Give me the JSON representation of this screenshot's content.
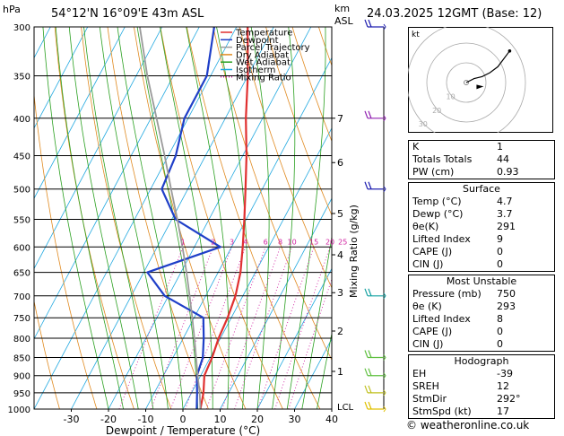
{
  "header": {
    "hpa_label": "hPa",
    "location": "54°12'N 16°09'E 43m ASL",
    "km_label": "km",
    "asl_label": "ASL",
    "datetime": "24.03.2025 12GMT (Base: 12)"
  },
  "legend": [
    {
      "label": "Temperature",
      "color": "#e03030",
      "dash": ""
    },
    {
      "label": "Dewpoint",
      "color": "#1f3fc8",
      "dash": ""
    },
    {
      "label": "Parcel Trajectory",
      "color": "#9a9a9a",
      "dash": ""
    },
    {
      "label": "Dry Adiabat",
      "color": "#e08a20",
      "dash": ""
    },
    {
      "label": "Wet Adiabat",
      "color": "#2aa020",
      "dash": ""
    },
    {
      "label": "Isotherm",
      "color": "#20a8e0",
      "dash": ""
    },
    {
      "label": "Mixing Ratio",
      "color": "#d020a0",
      "dash": "1,2"
    }
  ],
  "chart_data": {
    "type": "line",
    "xlabel": "Dewpoint / Temperature (°C)",
    "x_ticks": [
      -30,
      -20,
      -10,
      0,
      10,
      20,
      30,
      40
    ],
    "pressure_levels": [
      300,
      350,
      400,
      450,
      500,
      550,
      600,
      650,
      700,
      750,
      800,
      850,
      900,
      950,
      1000
    ],
    "km_ticks": [
      {
        "label": "7",
        "p": 400
      },
      {
        "label": "6",
        "p": 460
      },
      {
        "label": "5",
        "p": 540
      },
      {
        "label": "4",
        "p": 615
      },
      {
        "label": "3",
        "p": 693
      },
      {
        "label": "2",
        "p": 782
      },
      {
        "label": "1",
        "p": 888
      }
    ],
    "lcl_label": "LCL",
    "mixing_ratio_axis_label": "Mixing Ratio (g/kg)",
    "mixing_ratio_labels": [
      "1",
      "2",
      "3",
      "4",
      "6",
      "8",
      "10",
      "15",
      "20",
      "25"
    ],
    "mixing_ratio_values": [
      1,
      2,
      3,
      4,
      6,
      8,
      10,
      15,
      20,
      25
    ],
    "colors": {
      "temperature": "#e03030",
      "dewpoint": "#1f3fc8",
      "parcel": "#9a9a9a",
      "dry": "#e08a20",
      "wet": "#2aa020",
      "iso": "#20a8e0",
      "mix": "#d020a0"
    },
    "series": [
      {
        "name": "Temperature",
        "points": [
          [
            1000,
            4.7
          ],
          [
            950,
            3.2
          ],
          [
            900,
            1.0
          ],
          [
            850,
            0.5
          ],
          [
            800,
            -0.5
          ],
          [
            750,
            -1.0
          ],
          [
            700,
            -2.0
          ],
          [
            650,
            -4.0
          ],
          [
            600,
            -7.0
          ],
          [
            550,
            -10.5
          ],
          [
            500,
            -14.5
          ],
          [
            450,
            -19.0
          ],
          [
            400,
            -24.5
          ],
          [
            350,
            -30.0
          ],
          [
            300,
            -37.0
          ]
        ]
      },
      {
        "name": "Dewpoint",
        "points": [
          [
            1000,
            3.7
          ],
          [
            950,
            1.5
          ],
          [
            900,
            -1.0
          ],
          [
            850,
            -2.0
          ],
          [
            800,
            -4.5
          ],
          [
            750,
            -7.5
          ],
          [
            700,
            -21.0
          ],
          [
            650,
            -29.0
          ],
          [
            600,
            -13.0
          ],
          [
            550,
            -29.0
          ],
          [
            500,
            -37.0
          ],
          [
            450,
            -38.0
          ],
          [
            400,
            -41.0
          ],
          [
            350,
            -41.0
          ],
          [
            300,
            -46.0
          ]
        ]
      },
      {
        "name": "Parcel Trajectory",
        "points": [
          [
            1000,
            4.7
          ],
          [
            950,
            2.2
          ],
          [
            900,
            -0.8
          ],
          [
            850,
            -3.8
          ],
          [
            800,
            -7.0
          ],
          [
            750,
            -10.5
          ],
          [
            700,
            -14.3
          ],
          [
            650,
            -18.5
          ],
          [
            600,
            -23.2
          ],
          [
            550,
            -28.5
          ],
          [
            500,
            -34.5
          ],
          [
            450,
            -41.0
          ],
          [
            400,
            -48.5
          ],
          [
            350,
            -57.0
          ],
          [
            300,
            -66.0
          ]
        ]
      }
    ],
    "wind_barbs": [
      300,
      400,
      500,
      700,
      850,
      900,
      950,
      1000
    ]
  },
  "hodograph": {
    "unit_label": "kt",
    "ring_labels": [
      "10",
      "20",
      "30"
    ],
    "path_kt": [
      [
        0,
        0
      ],
      [
        4,
        2
      ],
      [
        8,
        3
      ],
      [
        12,
        5
      ],
      [
        16,
        8
      ],
      [
        22,
        16
      ]
    ],
    "storm_motion_kt": [
      7,
      -2
    ]
  },
  "table1": [
    {
      "label": "K",
      "value": "1"
    },
    {
      "label": "Totals Totals",
      "value": "44"
    },
    {
      "label": "PW (cm)",
      "value": "0.93"
    }
  ],
  "surface": {
    "title": "Surface",
    "rows": [
      {
        "label": "Temp (°C)",
        "value": "4.7"
      },
      {
        "label": "Dewp (°C)",
        "value": "3.7"
      },
      {
        "label": "θe(K)",
        "value": "291"
      },
      {
        "label": "Lifted Index",
        "value": "9"
      },
      {
        "label": "CAPE (J)",
        "value": "0"
      },
      {
        "label": "CIN (J)",
        "value": "0"
      }
    ]
  },
  "most_unstable": {
    "title": "Most Unstable",
    "rows": [
      {
        "label": "Pressure (mb)",
        "value": "750"
      },
      {
        "label": "θe (K)",
        "value": "293"
      },
      {
        "label": "Lifted Index",
        "value": "8"
      },
      {
        "label": "CAPE (J)",
        "value": "0"
      },
      {
        "label": "CIN (J)",
        "value": "0"
      }
    ]
  },
  "hodograph_table": {
    "title": "Hodograph",
    "rows": [
      {
        "label": "EH",
        "value": "-39"
      },
      {
        "label": "SREH",
        "value": "12"
      },
      {
        "label": "StmDir",
        "value": "292°"
      },
      {
        "label": "StmSpd (kt)",
        "value": "17"
      }
    ]
  },
  "credit": "© weatheronline.co.uk"
}
